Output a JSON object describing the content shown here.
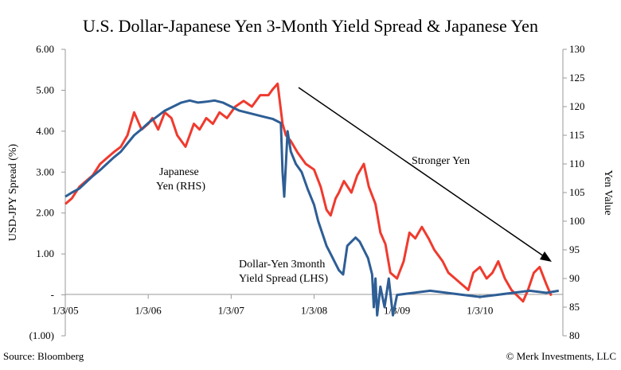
{
  "chart_data": {
    "type": "line",
    "title": "U.S. Dollar-Japanese Yen 3-Month Yield Spread & Japanese Yen",
    "ylabel_left": "USD-JPY Spread (%)",
    "ylabel_right": "Yen Value",
    "x_ticks": [
      "1/3/05",
      "1/3/06",
      "1/3/07",
      "1/3/08",
      "1/3/09",
      "1/3/10"
    ],
    "left_ticks": [
      "6.00",
      "5.00",
      "4.00",
      "3.00",
      "2.00",
      "1.00",
      "-",
      "(1.00)"
    ],
    "right_ticks": [
      "130",
      "125",
      "120",
      "115",
      "110",
      "105",
      "100",
      "95",
      "90",
      "85",
      "80"
    ],
    "ylim_left": [
      -1,
      6
    ],
    "ylim_right": [
      80,
      130
    ],
    "xlim": [
      2005.0,
      2011.0
    ],
    "grid": false,
    "series": [
      {
        "name": "Japanese Yen (RHS)",
        "axis": "right",
        "color": "#f03a2e",
        "x": [
          2005.0,
          2005.08,
          2005.17,
          2005.25,
          2005.33,
          2005.42,
          2005.5,
          2005.58,
          2005.67,
          2005.75,
          2005.83,
          2005.92,
          2006.0,
          2006.05,
          2006.12,
          2006.2,
          2006.28,
          2006.35,
          2006.45,
          2006.55,
          2006.62,
          2006.7,
          2006.78,
          2006.86,
          2006.95,
          2007.05,
          2007.15,
          2007.25,
          2007.35,
          2007.45,
          2007.5,
          2007.56,
          2007.62,
          2007.66,
          2007.72,
          2007.8,
          2007.9,
          2008.0,
          2008.08,
          2008.15,
          2008.2,
          2008.26,
          2008.3,
          2008.36,
          2008.45,
          2008.52,
          2008.6,
          2008.66,
          2008.74,
          2008.8,
          2008.86,
          2008.92,
          2009.0,
          2009.08,
          2009.15,
          2009.22,
          2009.3,
          2009.38,
          2009.45,
          2009.55,
          2009.62,
          2009.7,
          2009.78,
          2009.86,
          2009.92,
          2010.0,
          2010.08,
          2010.15,
          2010.22,
          2010.3,
          2010.38,
          2010.45,
          2010.52,
          2010.58,
          2010.65,
          2010.72,
          2010.8,
          2010.86
        ],
        "values": [
          103,
          104,
          106,
          107,
          108,
          110,
          111,
          112,
          113,
          115,
          119,
          116,
          117,
          118,
          116,
          119,
          118,
          115,
          113,
          117,
          116,
          118,
          117,
          119,
          118,
          120,
          121,
          120,
          122,
          122,
          123,
          124,
          117,
          115,
          114,
          112,
          110,
          109,
          106,
          102,
          101,
          104,
          105,
          107,
          105,
          108,
          110,
          106,
          103,
          98,
          96,
          91,
          90,
          93,
          98,
          97,
          99,
          97,
          95,
          93,
          91,
          90,
          89,
          88,
          91,
          92,
          90,
          91,
          93,
          90,
          88,
          87,
          86,
          88,
          91,
          92,
          89,
          87
        ]
      },
      {
        "name": "Dollar-Yen 3month Yield Spread (LHS)",
        "axis": "left",
        "color": "#2e5e95",
        "x": [
          2005.0,
          2005.08,
          2005.17,
          2005.25,
          2005.33,
          2005.42,
          2005.5,
          2005.58,
          2005.67,
          2005.75,
          2005.83,
          2005.92,
          2006.0,
          2006.1,
          2006.2,
          2006.3,
          2006.4,
          2006.5,
          2006.6,
          2006.7,
          2006.8,
          2006.9,
          2007.0,
          2007.1,
          2007.2,
          2007.3,
          2007.4,
          2007.5,
          2007.55,
          2007.6,
          2007.62,
          2007.64,
          2007.68,
          2007.72,
          2007.78,
          2007.85,
          2007.92,
          2008.0,
          2008.05,
          2008.1,
          2008.15,
          2008.2,
          2008.25,
          2008.3,
          2008.35,
          2008.4,
          2008.45,
          2008.5,
          2008.55,
          2008.6,
          2008.65,
          2008.7,
          2008.72,
          2008.74,
          2008.76,
          2008.8,
          2008.85,
          2008.9,
          2008.95,
          2009.0,
          2009.2,
          2009.4,
          2009.6,
          2009.8,
          2010.0,
          2010.2,
          2010.4,
          2010.6,
          2010.8,
          2010.95
        ],
        "values": [
          2.4,
          2.5,
          2.6,
          2.75,
          2.9,
          3.05,
          3.2,
          3.35,
          3.5,
          3.7,
          3.9,
          4.05,
          4.2,
          4.35,
          4.5,
          4.6,
          4.7,
          4.75,
          4.7,
          4.72,
          4.75,
          4.7,
          4.6,
          4.5,
          4.45,
          4.4,
          4.35,
          4.3,
          4.25,
          4.2,
          3.0,
          2.4,
          4.0,
          3.5,
          3.2,
          3.0,
          2.6,
          2.2,
          1.8,
          1.5,
          1.2,
          1.0,
          0.8,
          0.6,
          0.5,
          1.2,
          1.3,
          1.4,
          1.3,
          1.1,
          0.9,
          0.5,
          -0.3,
          0.4,
          -0.5,
          0.2,
          -0.3,
          0.4,
          -0.5,
          0.0,
          0.05,
          0.1,
          0.05,
          0.0,
          -0.05,
          0.0,
          0.05,
          0.1,
          0.05,
          0.1
        ]
      }
    ],
    "annotations": [
      {
        "label": "Stronger Yen"
      },
      {
        "label_line1": "Japanese",
        "label_line2": "Yen (RHS)"
      },
      {
        "label_line1": "Dollar-Yen 3month",
        "label_line2": "Yield Spread (LHS)"
      }
    ]
  },
  "footer": {
    "source": "Source: Bloomberg",
    "credit": "© Merk Investments, LLC"
  }
}
